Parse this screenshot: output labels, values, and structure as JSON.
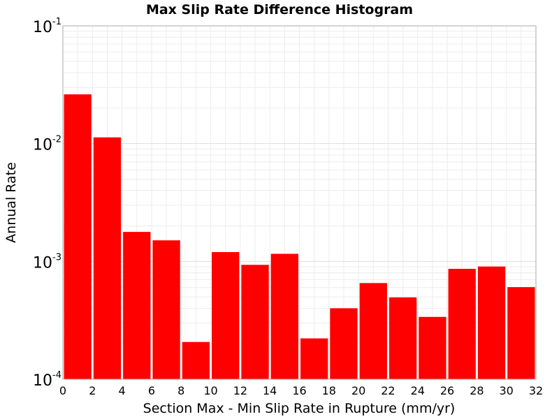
{
  "chart_data": {
    "type": "bar",
    "title": "Max Slip Rate Difference Histogram",
    "xlabel": "Section Max - Min Slip Rate in Rupture (mm/yr)",
    "ylabel": "Annual Rate",
    "xlim": [
      0,
      32
    ],
    "ylim": [
      0.0001,
      0.1
    ],
    "yscale": "log",
    "grid": true,
    "bar_color": "#ff0000",
    "bin_width": 2,
    "bin_starts": [
      0,
      2,
      4,
      6,
      8,
      10,
      12,
      14,
      16,
      18,
      20,
      22,
      24,
      26,
      28,
      30
    ],
    "values": [
      0.0262,
      0.0113,
      0.00178,
      0.00151,
      0.000207,
      0.0012,
      0.000935,
      0.00116,
      0.000222,
      0.0004,
      0.000655,
      0.000495,
      0.000338,
      0.000865,
      0.000905,
      0.000605
    ],
    "x_ticks": [
      "0",
      "2",
      "4",
      "6",
      "8",
      "10",
      "12",
      "14",
      "16",
      "18",
      "20",
      "22",
      "24",
      "26",
      "28",
      "30",
      "32"
    ],
    "y_ticks": [
      {
        "base": "10",
        "exp": "-4"
      },
      {
        "base": "10",
        "exp": "-3"
      },
      {
        "base": "10",
        "exp": "-2"
      },
      {
        "base": "10",
        "exp": "-1"
      }
    ]
  }
}
